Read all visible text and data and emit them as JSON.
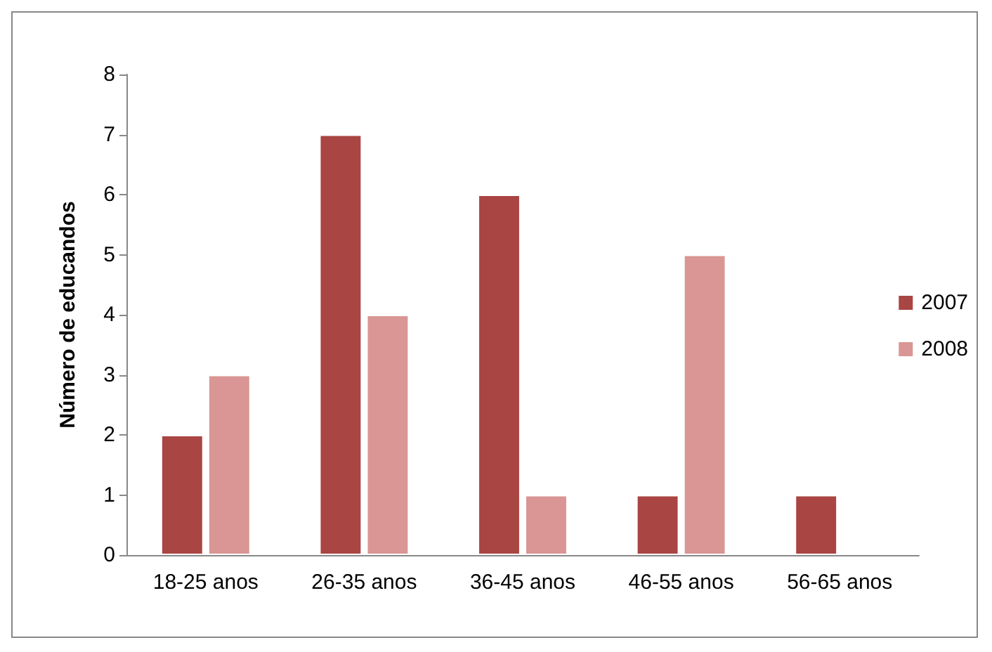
{
  "chart_data": {
    "type": "bar",
    "ylabel": "Número de educandos",
    "categories": [
      "18-25 anos",
      "26-35 anos",
      "36-45 anos",
      "46-55 anos",
      "56-65 anos"
    ],
    "series": [
      {
        "name": "2007",
        "color": "#a94543",
        "values": [
          2,
          7,
          6,
          1,
          1
        ]
      },
      {
        "name": "2008",
        "color": "#d99694",
        "values": [
          3,
          4,
          1,
          5,
          null
        ]
      }
    ],
    "ylim": [
      0,
      8
    ],
    "yticks": [
      0,
      1,
      2,
      3,
      4,
      5,
      6,
      7,
      8
    ],
    "grid": false,
    "legend": "right"
  }
}
